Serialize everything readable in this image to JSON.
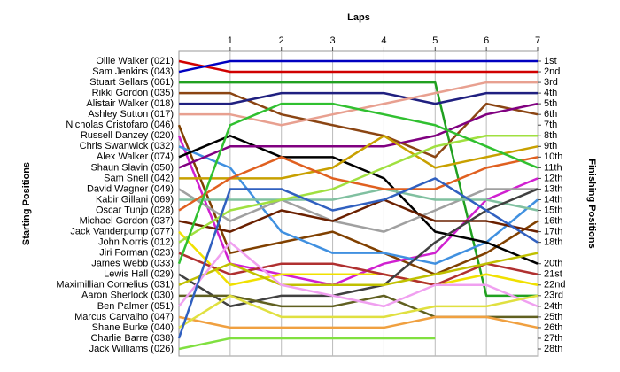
{
  "chart_data": {
    "type": "bump",
    "title": "Laps",
    "ylabel": "Starting Positions",
    "y2label": "Finishing Positions",
    "x": [
      0,
      1,
      2,
      3,
      4,
      5,
      6,
      7
    ],
    "xlim": [
      0,
      7
    ],
    "xticks": [
      1,
      2,
      3,
      4,
      5,
      6,
      7
    ],
    "ylim": [
      1,
      28
    ],
    "y2ticks": [
      {
        "value": 1,
        "label": "1st"
      },
      {
        "value": 2,
        "label": "2nd"
      },
      {
        "value": 3,
        "label": "3rd"
      },
      {
        "value": 4,
        "label": "4th"
      },
      {
        "value": 5,
        "label": "5th"
      },
      {
        "value": 6,
        "label": "6th"
      },
      {
        "value": 7,
        "label": "7th"
      },
      {
        "value": 8,
        "label": "8th"
      },
      {
        "value": 9,
        "label": "9th"
      },
      {
        "value": 10,
        "label": "10th"
      },
      {
        "value": 11,
        "label": "11th"
      },
      {
        "value": 12,
        "label": "12th"
      },
      {
        "value": 13,
        "label": "13th"
      },
      {
        "value": 14,
        "label": "14th"
      },
      {
        "value": 15,
        "label": "15th"
      },
      {
        "value": 16,
        "label": "16th"
      },
      {
        "value": 17,
        "label": "17th"
      },
      {
        "value": 18,
        "label": "18th"
      },
      {
        "value": 20,
        "label": "20th"
      },
      {
        "value": 21,
        "label": "21st"
      },
      {
        "value": 22,
        "label": "22nd"
      },
      {
        "value": 23,
        "label": "23rd"
      },
      {
        "value": 24,
        "label": "24th"
      },
      {
        "value": 25,
        "label": "25th"
      },
      {
        "value": 26,
        "label": "26th"
      },
      {
        "value": 27,
        "label": "27th"
      },
      {
        "value": 28,
        "label": "28th"
      }
    ],
    "series": [
      {
        "name": "Ollie Walker (021)",
        "color": "#d00000",
        "values": [
          1,
          2,
          2,
          2,
          2,
          2,
          2,
          2
        ]
      },
      {
        "name": "Sam Jenkins (043)",
        "color": "#0000c0",
        "values": [
          2,
          1,
          1,
          1,
          1,
          1,
          1,
          1
        ]
      },
      {
        "name": "Stuart Sellars (061)",
        "color": "#20a020",
        "values": [
          3,
          3,
          3,
          3,
          3,
          3,
          23,
          23
        ]
      },
      {
        "name": "Rikki Gordon (035)",
        "color": "#8b4513",
        "values": [
          4,
          4,
          6,
          7,
          8,
          10,
          5,
          6
        ]
      },
      {
        "name": "Alistair Walker (018)",
        "color": "#202080",
        "values": [
          5,
          5,
          4,
          4,
          4,
          5,
          4,
          4
        ]
      },
      {
        "name": "Ashley Sutton (017)",
        "color": "#e8a090",
        "values": [
          6,
          6,
          7,
          6,
          5,
          4,
          3,
          3
        ]
      },
      {
        "name": "Nicholas Cristofaro (046)",
        "color": "#804000",
        "values": [
          7,
          19,
          18,
          17,
          19,
          21,
          19,
          16
        ]
      },
      {
        "name": "Russell Danzey (020)",
        "color": "#d020d0",
        "values": [
          8,
          20,
          21,
          22,
          20,
          19,
          14,
          12
        ]
      },
      {
        "name": "Chris Swanwick (032)",
        "color": "#4090e0",
        "values": [
          9,
          11,
          17,
          19,
          19,
          20,
          18,
          14
        ]
      },
      {
        "name": "Alex Walker (074)",
        "color": "#000000",
        "values": [
          10,
          8,
          10,
          10,
          12,
          17,
          18,
          20
        ]
      },
      {
        "name": "Shaun Slavin (050)",
        "color": "#800080",
        "values": [
          11,
          9,
          9,
          9,
          9,
          8,
          6,
          5
        ]
      },
      {
        "name": "Sam Snell (042)",
        "color": "#c8a000",
        "values": [
          12,
          12,
          12,
          11,
          8,
          11,
          10,
          9
        ]
      },
      {
        "name": "David Wagner (049)",
        "color": "#a0a0a0",
        "values": [
          13,
          16,
          14,
          16,
          17,
          15,
          13,
          13
        ]
      },
      {
        "name": "Kabir Gillani (069)",
        "color": "#80c0a0",
        "values": [
          14,
          14,
          14,
          14,
          13,
          14,
          14,
          15
        ]
      },
      {
        "name": "Oscar Tunjo (028)",
        "color": "#e06020",
        "values": [
          15,
          12,
          10,
          12,
          13,
          13,
          11,
          10
        ]
      },
      {
        "name": "Michael Gordon (037)",
        "color": "#6a2000",
        "values": [
          16,
          17,
          15,
          16,
          14,
          16,
          16,
          17
        ]
      },
      {
        "name": "Jack Vanderpump (077)",
        "color": "#f0e000",
        "values": [
          17,
          22,
          21,
          21,
          21,
          22,
          21,
          22
        ]
      },
      {
        "name": "John Norris (012)",
        "color": "#a0e040",
        "values": [
          18,
          15,
          14,
          13,
          11,
          9,
          8,
          8
        ]
      },
      {
        "name": "Jiri Forman (023)",
        "color": "#b03030",
        "values": [
          19,
          21,
          20,
          20,
          21,
          22,
          20,
          21
        ]
      },
      {
        "name": "James Webb (033)",
        "color": "#30c030",
        "values": [
          20,
          7,
          5,
          5,
          6,
          7,
          9,
          11
        ]
      },
      {
        "name": "Lewis Hall (029)",
        "color": "#404040",
        "values": [
          21,
          24,
          23,
          23,
          22,
          18,
          15,
          13
        ]
      },
      {
        "name": "Maximillian Cornelius (031)",
        "color": "#c0c000",
        "values": [
          22,
          20,
          22,
          22,
          22,
          21,
          20,
          19
        ]
      },
      {
        "name": "Aaron Sherlock (030)",
        "color": "#606020",
        "values": [
          23,
          23,
          24,
          24,
          23,
          25,
          25,
          25
        ]
      },
      {
        "name": "Ben Palmer (051)",
        "color": "#f0a0f0",
        "values": [
          24,
          18,
          22,
          23,
          24,
          22,
          22,
          24
        ]
      },
      {
        "name": "Marcus Carvalho (047)",
        "color": "#f0a040",
        "values": [
          25,
          26,
          26,
          26,
          26,
          25,
          25,
          26
        ]
      },
      {
        "name": "Shane Burke (040)",
        "color": "#e0e040",
        "values": [
          26,
          23,
          25,
          25,
          25,
          24,
          24,
          23
        ]
      },
      {
        "name": "Charlie Barre (038)",
        "color": "#3060c0",
        "values": [
          27,
          13,
          13,
          15,
          14,
          12,
          15,
          18
        ]
      },
      {
        "name": "Jack Williams (026)",
        "color": "#80e040",
        "values": [
          28,
          27,
          27,
          27,
          27,
          27,
          null,
          null
        ]
      }
    ]
  }
}
